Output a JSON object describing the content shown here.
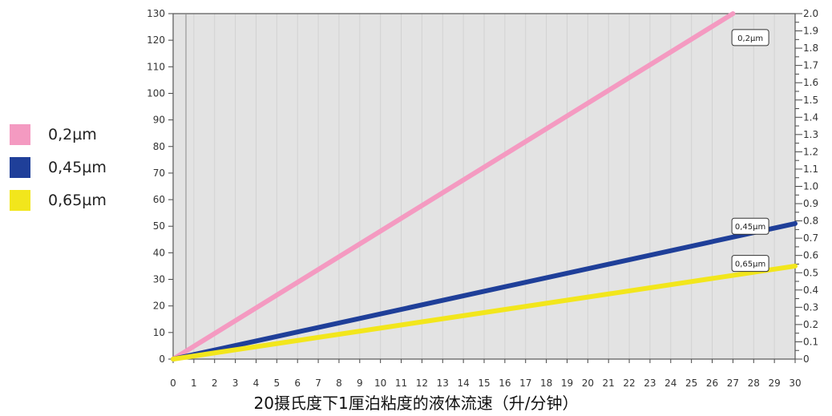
{
  "chart_data": {
    "type": "line",
    "xlabel": "20摄氏度下1厘泊粘度的液体流速（升/分钟）",
    "ylabel": "",
    "y2label": "",
    "xlim": [
      0,
      30
    ],
    "ylim": [
      0,
      130
    ],
    "y2lim": [
      0,
      2.0
    ],
    "x_ticks": [
      0,
      1,
      2,
      3,
      4,
      5,
      6,
      7,
      8,
      9,
      10,
      11,
      12,
      13,
      14,
      15,
      16,
      17,
      18,
      19,
      20,
      21,
      22,
      23,
      24,
      25,
      26,
      27,
      28,
      29,
      30
    ],
    "y_ticks": [
      0,
      10,
      20,
      30,
      40,
      50,
      60,
      70,
      80,
      90,
      100,
      110,
      120,
      130
    ],
    "y2_ticks": [
      "0",
      "0.1",
      "0.2",
      "0.3",
      "0.4",
      "0.5",
      "0.6",
      "0.7",
      "0.8",
      "0.9",
      "1.0",
      "1.1",
      "1.2",
      "1.3",
      "1.4",
      "1.5",
      "1.6",
      "1.7",
      "1.8",
      "1.9",
      "2.0"
    ],
    "grid": true,
    "legend_position": "left",
    "series": [
      {
        "name": "0,2µm",
        "color": "#f49ac1",
        "x": [
          0,
          27.0
        ],
        "y": [
          0,
          130
        ],
        "callout": "0,2µm",
        "callout_x": 27.8,
        "callout_y": 121
      },
      {
        "name": "0,45µm",
        "color": "#1f3f99",
        "x": [
          0,
          30
        ],
        "y": [
          0,
          51
        ],
        "callout": "0,45µm",
        "callout_x": 27.8,
        "callout_y": 50
      },
      {
        "name": "0,65µm",
        "color": "#f2e61c",
        "x": [
          0,
          30
        ],
        "y": [
          0,
          35
        ],
        "callout": "0,65µm",
        "callout_x": 27.8,
        "callout_y": 36
      }
    ]
  },
  "legend": {
    "items": [
      {
        "label": "0,2µm",
        "color": "#f49ac1"
      },
      {
        "label": "0,45µm",
        "color": "#1f3f99"
      },
      {
        "label": "0,65µm",
        "color": "#f2e61c"
      }
    ]
  }
}
